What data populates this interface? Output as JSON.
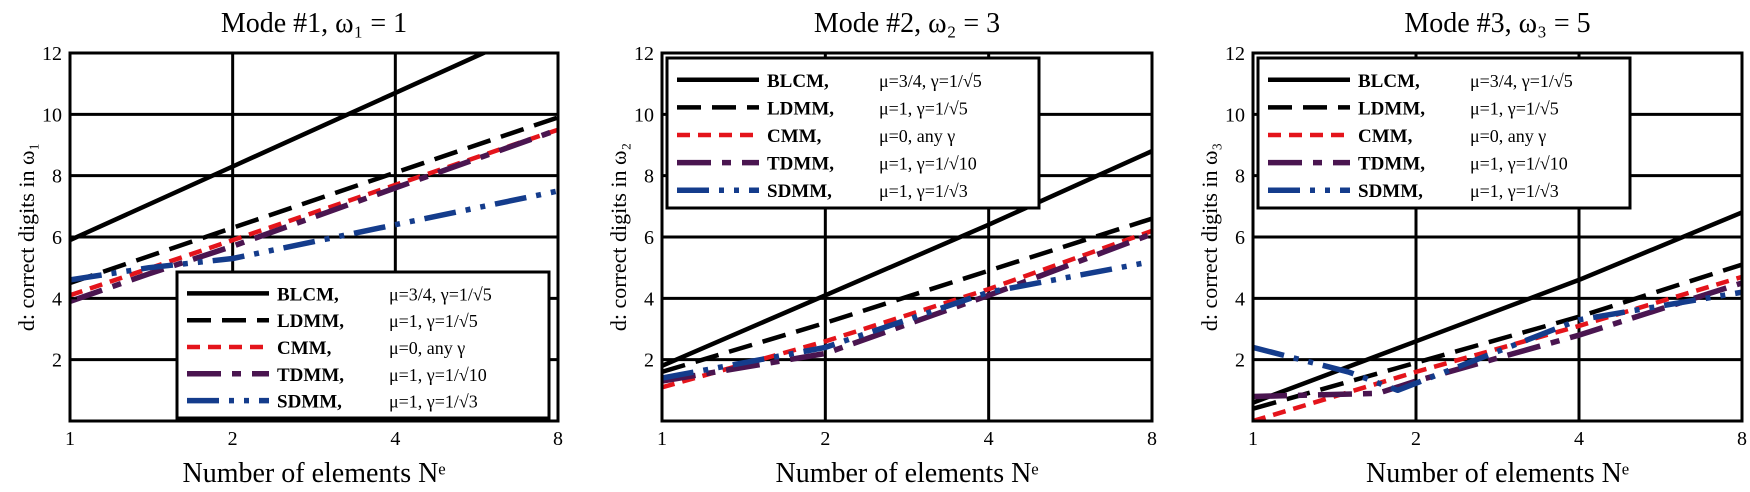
{
  "colors": {
    "BLCM": "#000000",
    "LDMM": "#000000",
    "CMM": "#e4141b",
    "TDMM": "#4a1550",
    "SDMM": "#143c8c",
    "grid": "#000000",
    "background": "#ffffff"
  },
  "legend_entries": [
    {
      "name": "BLCM,",
      "param": "μ=3/4, γ=1/√5"
    },
    {
      "name": "LDMM,",
      "param": "μ=1, γ=1/√5"
    },
    {
      "name": "CMM,",
      "param": "μ=0,  any γ"
    },
    {
      "name": "TDMM,",
      "param": "μ=1, γ=1/√10"
    },
    {
      "name": "SDMM,",
      "param": "μ=1, γ=1/√3"
    }
  ],
  "chart_data": [
    {
      "type": "line",
      "title": "Mode #1, ω₁ = 1",
      "xlabel": "Number of elements Nᵉ",
      "ylabel": "d: correct digits in ω₁",
      "xscale": "log2",
      "xlim": [
        1,
        8
      ],
      "ylim": [
        0,
        12
      ],
      "xticks": [
        1,
        2,
        4,
        8
      ],
      "xtick_labels": [
        "1",
        "2",
        "4",
        "8"
      ],
      "yticks": [
        2,
        4,
        6,
        8,
        10,
        12
      ],
      "ytick_labels": [
        "2",
        "4",
        "6",
        "8",
        "10",
        "12"
      ],
      "grid": true,
      "legend_placement": "lower-right",
      "series": [
        {
          "name": "BLCM",
          "x": [
            1,
            2,
            4,
            8
          ],
          "y": [
            5.9,
            8.3,
            10.7,
            13.1
          ]
        },
        {
          "name": "LDMM",
          "x": [
            1,
            2,
            4,
            8
          ],
          "y": [
            4.5,
            6.3,
            8.1,
            9.9
          ]
        },
        {
          "name": "CMM",
          "x": [
            1,
            2,
            4,
            8
          ],
          "y": [
            4.1,
            5.9,
            7.7,
            9.5
          ]
        },
        {
          "name": "TDMM",
          "x": [
            1,
            1.4,
            2,
            4,
            8
          ],
          "y": [
            3.9,
            4.8,
            5.7,
            7.6,
            9.5
          ]
        },
        {
          "name": "SDMM",
          "x": [
            1,
            1.4,
            2,
            4,
            8
          ],
          "y": [
            4.6,
            5.0,
            5.3,
            6.4,
            7.5
          ]
        }
      ]
    },
    {
      "type": "line",
      "title": "Mode #2, ω₂ = 3",
      "xlabel": "Number of elements Nᵉ",
      "ylabel": "d: correct digits in ω₂",
      "xscale": "log2",
      "xlim": [
        1,
        8
      ],
      "ylim": [
        0,
        12
      ],
      "xticks": [
        1,
        2,
        4,
        8
      ],
      "xtick_labels": [
        "1",
        "2",
        "4",
        "8"
      ],
      "yticks": [
        2,
        4,
        6,
        8,
        10,
        12
      ],
      "ytick_labels": [
        "2",
        "4",
        "6",
        "8",
        "10",
        "12"
      ],
      "grid": true,
      "legend_placement": "upper-left",
      "series": [
        {
          "name": "BLCM",
          "x": [
            1,
            2,
            4,
            8
          ],
          "y": [
            1.8,
            4.1,
            6.4,
            8.8
          ]
        },
        {
          "name": "LDMM",
          "x": [
            1,
            2,
            4,
            8
          ],
          "y": [
            1.6,
            3.2,
            4.9,
            6.6
          ]
        },
        {
          "name": "CMM",
          "x": [
            1,
            2,
            4,
            8
          ],
          "y": [
            1.1,
            2.6,
            4.3,
            6.2
          ]
        },
        {
          "name": "TDMM",
          "x": [
            1,
            2,
            4,
            8
          ],
          "y": [
            1.3,
            2.2,
            4.1,
            6.1
          ]
        },
        {
          "name": "SDMM",
          "x": [
            1,
            2,
            4,
            8
          ],
          "y": [
            1.4,
            2.4,
            4.2,
            5.2
          ]
        }
      ]
    },
    {
      "type": "line",
      "title": "Mode #3, ω₃ = 5",
      "xlabel": "Number of elements Nᵉ",
      "ylabel": "d: correct digits in ω₃",
      "xscale": "log2",
      "xlim": [
        1,
        8
      ],
      "ylim": [
        0,
        12
      ],
      "xticks": [
        1,
        2,
        4,
        8
      ],
      "xtick_labels": [
        "1",
        "2",
        "4",
        "8"
      ],
      "yticks": [
        2,
        4,
        6,
        8,
        10,
        12
      ],
      "ytick_labels": [
        "2",
        "4",
        "6",
        "8",
        "10",
        "12"
      ],
      "grid": true,
      "legend_placement": "upper-left",
      "series": [
        {
          "name": "BLCM",
          "x": [
            1,
            2,
            4,
            8
          ],
          "y": [
            0.6,
            2.6,
            4.6,
            6.8
          ]
        },
        {
          "name": "LDMM",
          "x": [
            1,
            2,
            4,
            8
          ],
          "y": [
            0.4,
            1.9,
            3.4,
            5.1
          ]
        },
        {
          "name": "CMM",
          "x": [
            1,
            2,
            4,
            8
          ],
          "y": [
            0.0,
            1.6,
            3.1,
            4.7
          ]
        },
        {
          "name": "TDMM",
          "x": [
            1,
            1.7,
            2,
            4,
            8
          ],
          "y": [
            0.8,
            0.9,
            1.3,
            2.8,
            4.5
          ]
        },
        {
          "name": "SDMM",
          "x": [
            1,
            1.5,
            1.85,
            4,
            8
          ],
          "y": [
            2.4,
            1.6,
            1.0,
            3.3,
            4.2
          ]
        }
      ]
    }
  ]
}
